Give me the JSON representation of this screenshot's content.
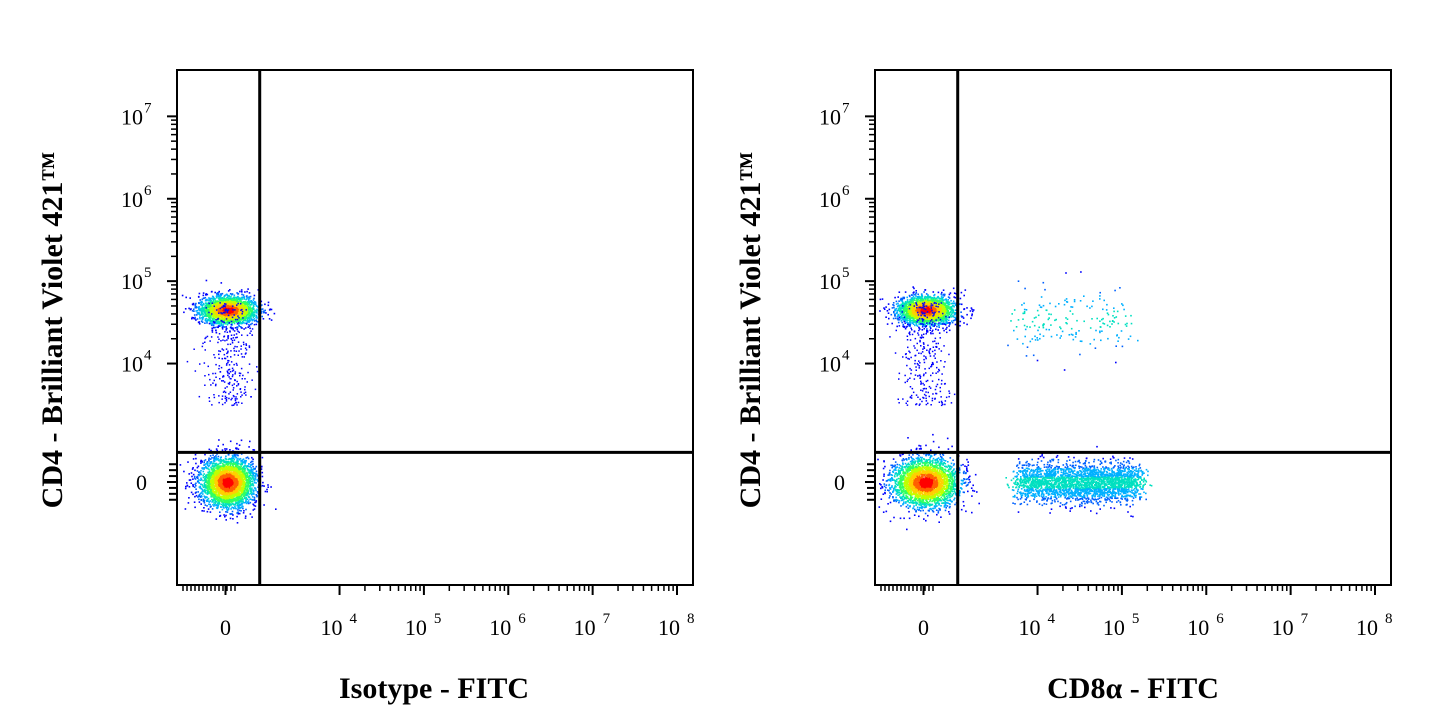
{
  "colors": {
    "density": [
      "#0000ff",
      "#0060ff",
      "#00b0ff",
      "#00e0c0",
      "#30ff60",
      "#c0ff00",
      "#ffd000",
      "#ff6000",
      "#ff0000"
    ],
    "axes": "#000000",
    "background": "#ffffff"
  },
  "chart_data": [
    {
      "type": "scatter",
      "plot_style": "flow cytometry density dot plot (biexponential axes, quadrant gates)",
      "xlabel": "Isotype - FITC",
      "ylabel": "CD4 - Brilliant Violet 421™",
      "x_ticks": [
        {
          "base": "0",
          "exp": ""
        },
        {
          "base": "10",
          "exp": "4"
        },
        {
          "base": "10",
          "exp": "5"
        },
        {
          "base": "10",
          "exp": "6"
        },
        {
          "base": "10",
          "exp": "7"
        },
        {
          "base": "10",
          "exp": "8"
        }
      ],
      "y_ticks": [
        {
          "base": "0",
          "exp": ""
        },
        {
          "base": "10",
          "exp": "4"
        },
        {
          "base": "10",
          "exp": "5"
        },
        {
          "base": "10",
          "exp": "6"
        },
        {
          "base": "10",
          "exp": "7"
        }
      ],
      "xlim": [
        -2000,
        100000000
      ],
      "ylim": [
        -2000,
        30000000
      ],
      "x_gate": 3000,
      "y_gate": 2500,
      "grid": false,
      "populations": [
        {
          "name": "",
          "x_center": 200,
          "y_center": 45000,
          "count": 2200
        },
        {
          "name": "",
          "x_center": 150,
          "y_center": 0,
          "count": 3200
        }
      ]
    },
    {
      "type": "scatter",
      "plot_style": "flow cytometry density dot plot (biexponential axes, quadrant gates)",
      "xlabel": "CD8α - FITC",
      "ylabel": "CD4 - Brilliant Violet 421™",
      "x_ticks": [
        {
          "base": "0",
          "exp": ""
        },
        {
          "base": "10",
          "exp": "4"
        },
        {
          "base": "10",
          "exp": "5"
        },
        {
          "base": "10",
          "exp": "6"
        },
        {
          "base": "10",
          "exp": "7"
        },
        {
          "base": "10",
          "exp": "8"
        }
      ],
      "y_ticks": [
        {
          "base": "0",
          "exp": ""
        },
        {
          "base": "10",
          "exp": "4"
        },
        {
          "base": "10",
          "exp": "5"
        },
        {
          "base": "10",
          "exp": "6"
        },
        {
          "base": "10",
          "exp": "7"
        }
      ],
      "xlim": [
        -2000,
        100000000
      ],
      "ylim": [
        -2000,
        30000000
      ],
      "x_gate": 3000,
      "y_gate": 2500,
      "grid": false,
      "populations": [
        {
          "name": "",
          "x_center": 200,
          "y_center": 45000,
          "count": 2200
        },
        {
          "name": "",
          "x_center": 150,
          "y_center": 0,
          "count": 2800
        },
        {
          "name": "",
          "x_center": 30000,
          "y_center": 0,
          "count": 2600
        },
        {
          "name": "",
          "x_center": 25000,
          "y_center": 35000,
          "count": 180
        }
      ]
    }
  ]
}
